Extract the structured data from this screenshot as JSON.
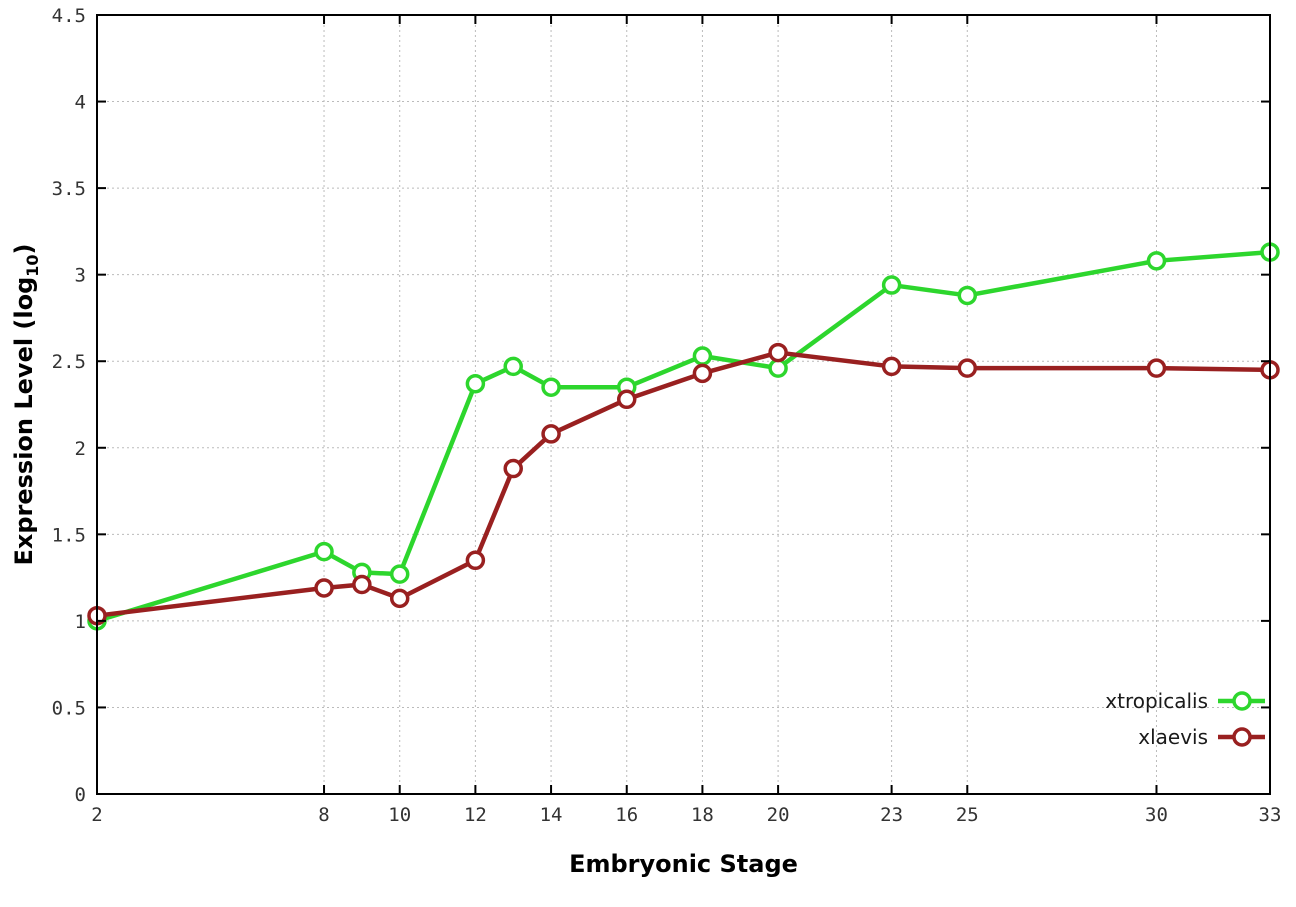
{
  "page": {
    "background": "#ffffff"
  },
  "chart_data": {
    "type": "line",
    "title": "",
    "xlabel": "Embryonic Stage",
    "ylabel": "Expression Level (log10)",
    "xlim": [
      2,
      33
    ],
    "ylim": [
      0,
      4.5
    ],
    "grid": true,
    "legend_position": "bottom-right-inside",
    "x": [
      2,
      8,
      9,
      10,
      12,
      13,
      14,
      16,
      18,
      20,
      23,
      25,
      30,
      33
    ],
    "xticks": [
      2,
      8,
      10,
      12,
      14,
      16,
      18,
      20,
      23,
      25,
      30,
      33
    ],
    "xtick_labels": [
      "2",
      "8",
      "10",
      "12",
      "14",
      "16",
      "18",
      "20",
      "23",
      "25",
      "30",
      "33"
    ],
    "yticks": [
      0,
      0.5,
      1,
      1.5,
      2,
      2.5,
      3,
      3.5,
      4,
      4.5
    ],
    "ytick_labels": [
      "0",
      "0.5",
      "1",
      "1.5",
      "2",
      "2.5",
      "3",
      "3.5",
      "4",
      "4.5"
    ],
    "series": [
      {
        "name": "xtropicalis",
        "color": "#2dd62d",
        "values": [
          1.0,
          1.4,
          1.28,
          1.27,
          2.37,
          2.47,
          2.35,
          2.35,
          2.53,
          2.46,
          2.94,
          2.88,
          3.08,
          3.13
        ]
      },
      {
        "name": "xlaevis",
        "color": "#992020",
        "values": [
          1.03,
          1.19,
          1.21,
          1.13,
          1.35,
          1.88,
          2.08,
          2.28,
          2.43,
          2.55,
          2.47,
          2.46,
          2.46,
          2.45
        ]
      }
    ]
  },
  "labels": {
    "ylabel_main": "Expression Level (log",
    "ylabel_sub": "10",
    "ylabel_close": ")"
  },
  "style": {
    "grid_color": "#bbbbbb",
    "border_color": "#000000",
    "tick_label_color": "#333333",
    "axis_label_color": "#000000",
    "legend_text_color": "#1a1a1a",
    "marker_fill": "#ffffff"
  }
}
